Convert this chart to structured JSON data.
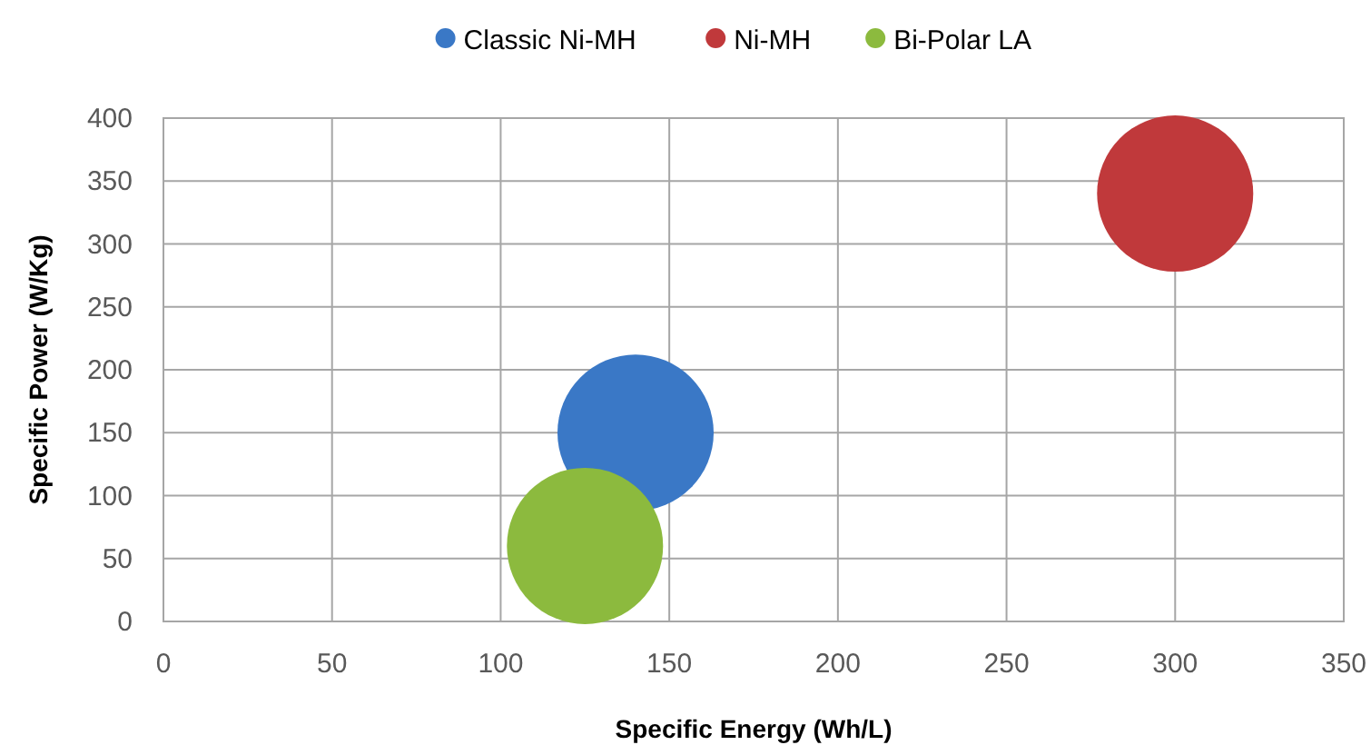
{
  "chart_data": {
    "type": "bubble",
    "xlabel": "Specific Energy (Wh/L)",
    "ylabel": "Specific Power (W/Kg)",
    "series": [
      {
        "name": "Classic Ni-MH",
        "color": "#3a78c6",
        "x": [
          140
        ],
        "values": [
          150
        ],
        "sizes": [
          1
        ]
      },
      {
        "name": "Ni-MH",
        "color": "#c0393b",
        "x": [
          300
        ],
        "values": [
          340
        ],
        "sizes": [
          1
        ]
      },
      {
        "name": "Bi-Polar LA",
        "color": "#8cba3e",
        "x": [
          125
        ],
        "values": [
          60
        ],
        "sizes": [
          1
        ]
      }
    ],
    "xlim": [
      0,
      350
    ],
    "xticks": [
      0,
      50,
      100,
      150,
      200,
      250,
      300,
      350
    ],
    "ylim": [
      0,
      400
    ],
    "yticks": [
      0,
      50,
      100,
      150,
      200,
      250,
      300,
      350,
      400
    ],
    "grid": true,
    "legend": "top"
  }
}
